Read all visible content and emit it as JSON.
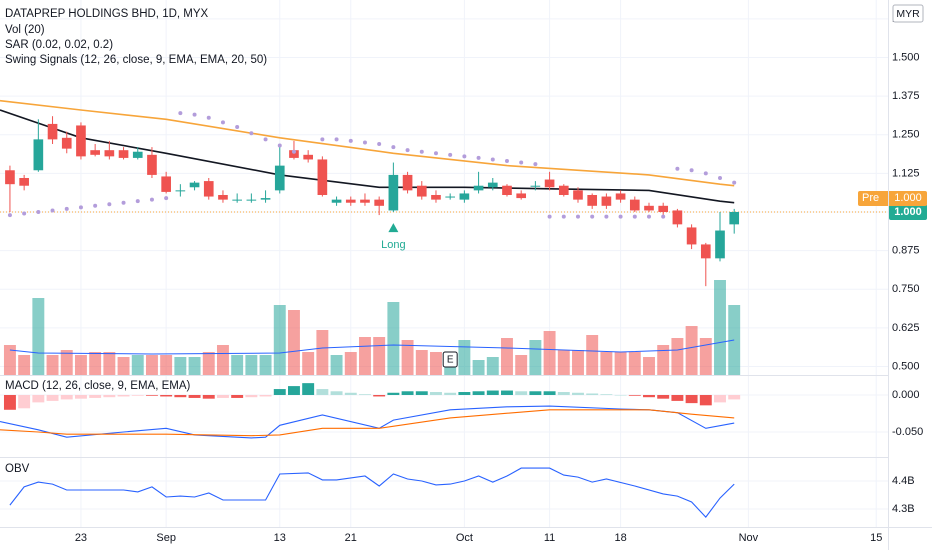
{
  "chart_data": {
    "type": "candlestick",
    "legend": [
      "DATAPREP HOLDINGS BHD, 1D, MYX",
      "Vol (20)",
      "SAR (0.02, 0.02, 0.2)",
      "Swing Signals (12, 26, close, 9, EMA, EMA, 20, 50)"
    ],
    "currency": "MYR",
    "up_color": "#26a69a",
    "down_color": "#ef5350",
    "xlim": [
      -0.7,
      61.83
    ],
    "xticks": [
      {
        "value": 5,
        "label": "23"
      },
      {
        "value": 11,
        "label": "Sep"
      },
      {
        "value": 19,
        "label": "13"
      },
      {
        "value": 24,
        "label": "21"
      },
      {
        "value": 32,
        "label": "Oct"
      },
      {
        "value": 38,
        "label": "11"
      },
      {
        "value": 43,
        "label": "18"
      },
      {
        "value": 52,
        "label": "Nov"
      },
      {
        "value": 61,
        "label": "15"
      }
    ],
    "ylim": [
      0.4725,
      1.686
    ],
    "yticks": [
      {
        "value": 0.5,
        "label": "0.500"
      },
      {
        "value": 0.625,
        "label": "0.625"
      },
      {
        "value": 0.75,
        "label": "0.750"
      },
      {
        "value": 0.875,
        "label": "0.875"
      },
      {
        "value": 1,
        "label": "1.000"
      },
      {
        "value": 1.125,
        "label": "1.125"
      },
      {
        "value": 1.25,
        "label": "1.250"
      },
      {
        "value": 1.375,
        "label": "1.375"
      },
      {
        "value": 1.5,
        "label": "1.500"
      },
      {
        "value": 1.625,
        "label": "1.625"
      }
    ],
    "open": [
      1.135,
      1.11,
      1.135,
      1.285,
      1.24,
      1.28,
      1.2,
      1.2,
      1.2,
      1.175,
      1.185,
      1.115,
      1.07,
      1.08,
      1.1,
      1.055,
      1.04,
      1.04,
      1.04,
      1.07,
      1.2,
      1.185,
      1.17,
      1.03,
      1.04,
      1.04,
      1.04,
      1.005,
      1.12,
      1.085,
      1.055,
      1.05,
      1.04,
      1.07,
      1.08,
      1.085,
      1.06,
      1.085,
      1.105,
      1.085,
      1.07,
      1.055,
      1.05,
      1.06,
      1.04,
      1.02,
      1.02,
      1.005,
      0.95,
      0.895,
      0.85,
      0.96
    ],
    "high": [
      1.15,
      1.12,
      1.3,
      1.31,
      1.26,
      1.29,
      1.22,
      1.23,
      1.21,
      1.21,
      1.21,
      1.13,
      1.09,
      1.1,
      1.11,
      1.07,
      1.06,
      1.06,
      1.07,
      1.22,
      1.23,
      1.2,
      1.18,
      1.05,
      1.05,
      1.06,
      1.05,
      1.16,
      1.13,
      1.1,
      1.07,
      1.06,
      1.07,
      1.13,
      1.11,
      1.09,
      1.07,
      1.1,
      1.13,
      1.09,
      1.08,
      1.06,
      1.06,
      1.07,
      1.05,
      1.03,
      1.03,
      1.01,
      0.96,
      0.9,
      1.0,
      1.01
    ],
    "low": [
      1.0,
      1.07,
      1.13,
      1.22,
      1.19,
      1.17,
      1.18,
      1.17,
      1.17,
      1.17,
      1.11,
      1.06,
      1.05,
      1.07,
      1.04,
      1.03,
      1.03,
      1.03,
      1.03,
      1.06,
      1.17,
      1.16,
      1.05,
      1.02,
      1.02,
      1.02,
      0.99,
      1.0,
      1.06,
      1.04,
      1.03,
      1.04,
      1.03,
      1.06,
      1.07,
      1.05,
      1.04,
      1.07,
      1.07,
      1.05,
      1.03,
      1.01,
      1.01,
      1.03,
      1.0,
      1.0,
      0.99,
      0.95,
      0.88,
      0.76,
      0.84,
      0.93
    ],
    "close": [
      1.09,
      1.085,
      1.235,
      1.235,
      1.205,
      1.18,
      1.185,
      1.18,
      1.175,
      1.195,
      1.12,
      1.065,
      1.07,
      1.095,
      1.05,
      1.04,
      1.04,
      1.04,
      1.045,
      1.15,
      1.175,
      1.17,
      1.055,
      1.04,
      1.03,
      1.03,
      1.02,
      1.12,
      1.07,
      1.05,
      1.04,
      1.05,
      1.06,
      1.085,
      1.095,
      1.055,
      1.045,
      1.085,
      1.08,
      1.055,
      1.04,
      1.02,
      1.02,
      1.04,
      1.005,
      1.005,
      1.0,
      0.96,
      0.895,
      0.85,
      0.94,
      1.0
    ],
    "sar": [
      0.99,
      0.995,
      1.0,
      1.005,
      1.01,
      1.015,
      1.02,
      1.025,
      1.03,
      1.035,
      1.04,
      1.045,
      1.32,
      1.315,
      1.305,
      1.29,
      1.275,
      1.255,
      1.235,
      1.215,
      1.195,
      null,
      1.235,
      1.235,
      1.23,
      1.225,
      1.22,
      1.21,
      1.2,
      1.195,
      1.19,
      1.185,
      1.18,
      1.175,
      1.17,
      1.165,
      1.16,
      1.155,
      0.985,
      0.985,
      0.985,
      0.985,
      0.985,
      0.985,
      0.985,
      0.985,
      0.985,
      1.14,
      1.135,
      1.125,
      1.11,
      1.095
    ],
    "sar_color": "#b39ddb",
    "lines": [
      {
        "color": "#131722",
        "x": [
          -0.7,
          5,
          11,
          19,
          26,
          32,
          38,
          45,
          50,
          51
        ],
        "values": [
          1.33,
          1.24,
          1.19,
          1.12,
          1.08,
          1.08,
          1.075,
          1.07,
          1.035,
          1.03
        ]
      },
      {
        "color": "#f7a53a",
        "x": [
          -0.7,
          5,
          11,
          19,
          27,
          35,
          45,
          50,
          51
        ],
        "values": [
          1.36,
          1.33,
          1.3,
          1.24,
          1.19,
          1.15,
          1.12,
          1.09,
          1.085
        ]
      }
    ],
    "signals": [
      {
        "x": 27,
        "value": 0.99,
        "label": "Long"
      }
    ],
    "events": [
      {
        "x": 31,
        "label": "E"
      }
    ],
    "volume": [
      30,
      20,
      77,
      20,
      25,
      20,
      23,
      23,
      18,
      20,
      20,
      20,
      18,
      18,
      23,
      30,
      20,
      20,
      20,
      70,
      65,
      23,
      45,
      20,
      23,
      38,
      38,
      73,
      35,
      25,
      23,
      20,
      35,
      15,
      18,
      37,
      20,
      35,
      44,
      25,
      25,
      40,
      23,
      23,
      23,
      18,
      30,
      37,
      49,
      37,
      95,
      70
    ],
    "volume_ma": {
      "color": "#2962ff",
      "x": [
        0,
        2,
        10,
        19,
        22,
        27,
        35,
        43,
        47,
        51
      ],
      "values": [
        25,
        22,
        21,
        22,
        27,
        30,
        27,
        23,
        25,
        35
      ]
    },
    "last_price": {
      "value": 1.0,
      "value_label": "1.000"
    },
    "pre_market": {
      "label": "Pre",
      "value": 1.0,
      "value_label": "1.000"
    },
    "macd": {
      "title": "MACD (12, 26, close, 9, EMA, EMA)",
      "ylim": [
        -0.0838,
        0.027
      ],
      "yticks": [
        {
          "value": 0,
          "label": "0.000"
        },
        {
          "value": -0.05,
          "label": "-0.050"
        }
      ],
      "histogram": [
        -0.02,
        -0.018,
        -0.01,
        -0.008,
        -0.006,
        -0.005,
        -0.004,
        -0.003,
        -0.002,
        -0.001,
        -0.001,
        -0.002,
        -0.003,
        -0.004,
        -0.005,
        -0.004,
        -0.004,
        -0.003,
        -0.002,
        0.008,
        0.012,
        0.016,
        0.008,
        0.005,
        0.003,
        0.001,
        -0.002,
        0.003,
        0.005,
        0.005,
        0.004,
        0.003,
        0.004,
        0.005,
        0.006,
        0.006,
        0.005,
        0.005,
        0.005,
        0.004,
        0.003,
        0.002,
        0.001,
        0.0,
        -0.001,
        -0.003,
        -0.005,
        -0.008,
        -0.011,
        -0.014,
        -0.01,
        -0.006
      ],
      "macd_line": {
        "color": "#2962ff",
        "x": [
          -0.7,
          2,
          4,
          8,
          11,
          13,
          17,
          18,
          19,
          22,
          26,
          27,
          31,
          35,
          38,
          43,
          45,
          47,
          49,
          51
        ],
        "values": [
          -0.036,
          -0.047,
          -0.057,
          -0.05,
          -0.045,
          -0.054,
          -0.058,
          -0.057,
          -0.041,
          -0.027,
          -0.045,
          -0.034,
          -0.02,
          -0.016,
          -0.015,
          -0.019,
          -0.02,
          -0.024,
          -0.045,
          -0.038
        ]
      },
      "signal_line": {
        "color": "#ff6d00",
        "x": [
          -0.7,
          2,
          4,
          11,
          17,
          19,
          22,
          26,
          31,
          38,
          45,
          48,
          51
        ],
        "values": [
          -0.047,
          -0.05,
          -0.053,
          -0.053,
          -0.055,
          -0.054,
          -0.045,
          -0.045,
          -0.031,
          -0.02,
          -0.02,
          -0.026,
          -0.031
        ]
      }
    },
    "obv": {
      "title": "OBV",
      "color": "#2962ff",
      "ylim": [
        4.2357,
        4.4857
      ],
      "yticks": [
        {
          "value": 4.4,
          "label": "4.4B"
        },
        {
          "value": 4.3,
          "label": "4.3B"
        }
      ],
      "x": [
        0,
        1,
        2,
        3,
        4,
        6,
        8,
        9,
        10,
        11,
        12,
        13,
        14,
        15,
        18,
        19,
        21,
        22,
        23,
        25,
        26,
        27,
        28,
        29,
        30,
        31,
        32,
        33,
        34,
        35,
        36,
        38,
        39,
        40,
        41,
        42,
        44,
        46,
        47,
        48,
        49,
        50,
        51
      ],
      "values": [
        4.314,
        4.379,
        4.396,
        4.389,
        4.368,
        4.368,
        4.368,
        4.361,
        4.379,
        4.343,
        4.346,
        4.343,
        4.357,
        4.332,
        4.332,
        4.425,
        4.429,
        4.404,
        4.404,
        4.418,
        4.382,
        4.425,
        4.407,
        4.4,
        4.386,
        4.389,
        4.4,
        4.418,
        4.396,
        4.418,
        4.446,
        4.446,
        4.421,
        4.414,
        4.396,
        4.407,
        4.382,
        4.354,
        4.346,
        4.325,
        4.271,
        4.339,
        4.389
      ]
    }
  }
}
